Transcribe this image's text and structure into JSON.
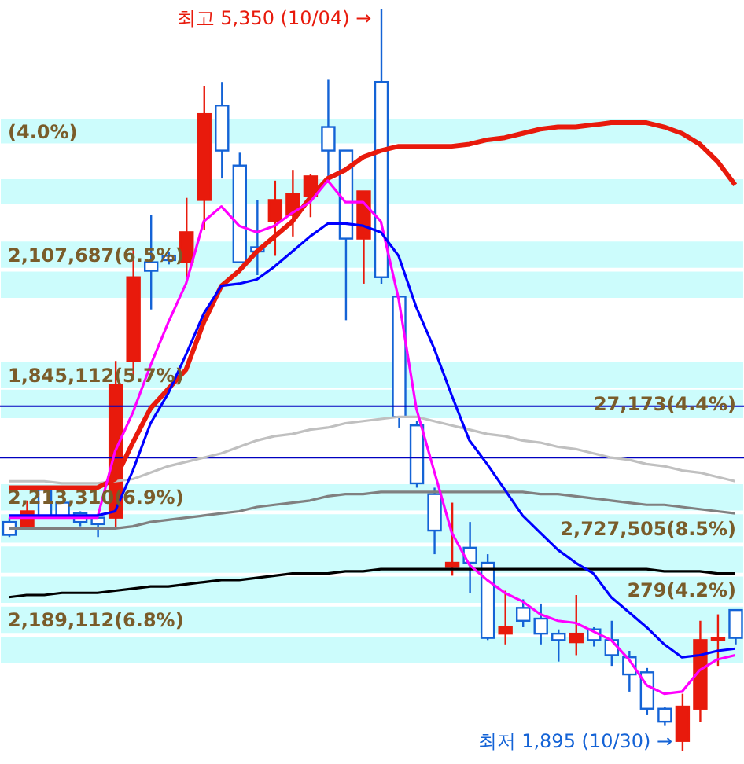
{
  "chart_data": {
    "type": "candlestick",
    "categories": [
      null,
      null,
      null,
      null,
      null,
      null,
      null,
      null,
      null,
      null,
      null,
      null,
      null,
      null,
      null,
      null,
      null,
      null,
      null,
      null,
      null,
      null,
      null,
      null,
      null,
      null,
      null,
      null,
      null,
      null,
      null,
      null,
      null,
      null,
      null,
      null,
      null,
      null,
      null,
      null,
      null,
      null
    ],
    "ohlc": [
      [
        2960,
        2980,
        2890,
        2900
      ],
      [
        2930,
        3060,
        2930,
        3010
      ],
      [
        3110,
        3110,
        2980,
        2980
      ],
      [
        3050,
        3050,
        2980,
        2980
      ],
      [
        3000,
        3010,
        2940,
        2960
      ],
      [
        2980,
        2990,
        2890,
        2950
      ],
      [
        2980,
        3710,
        2930,
        3600
      ],
      [
        3710,
        4230,
        3630,
        4100
      ],
      [
        4170,
        4390,
        3950,
        4130
      ],
      [
        4200,
        4220,
        4160,
        4180
      ],
      [
        4170,
        4470,
        4090,
        4310
      ],
      [
        4460,
        4990,
        4320,
        4860
      ],
      [
        4900,
        5010,
        4560,
        4690
      ],
      [
        4620,
        4680,
        4170,
        4170
      ],
      [
        4240,
        4460,
        4110,
        4220
      ],
      [
        4360,
        4550,
        4200,
        4460
      ],
      [
        4390,
        4600,
        4290,
        4490
      ],
      [
        4480,
        4580,
        4380,
        4570
      ],
      [
        4800,
        5020,
        4560,
        4690
      ],
      [
        4690,
        4690,
        3900,
        4280
      ],
      [
        4280,
        4500,
        4070,
        4500
      ],
      [
        5010,
        5350,
        4070,
        4100
      ],
      [
        4010,
        4010,
        3400,
        3450
      ],
      [
        3410,
        3430,
        3120,
        3140
      ],
      [
        3090,
        3120,
        2810,
        2920
      ],
      [
        2750,
        3050,
        2710,
        2770
      ],
      [
        2840,
        2960,
        2630,
        2770
      ],
      [
        2770,
        2810,
        2410,
        2420
      ],
      [
        2440,
        2640,
        2390,
        2470
      ],
      [
        2560,
        2600,
        2470,
        2500
      ],
      [
        2510,
        2580,
        2390,
        2440
      ],
      [
        2440,
        2460,
        2310,
        2410
      ],
      [
        2400,
        2620,
        2340,
        2440
      ],
      [
        2460,
        2470,
        2380,
        2410
      ],
      [
        2410,
        2500,
        2290,
        2340
      ],
      [
        2330,
        2360,
        2170,
        2250
      ],
      [
        2260,
        2280,
        2060,
        2090
      ],
      [
        2090,
        2100,
        2010,
        2030
      ],
      [
        1940,
        2160,
        1895,
        2100
      ],
      [
        2090,
        2500,
        2030,
        2410
      ],
      [
        2410,
        2530,
        2290,
        2420
      ],
      [
        2550,
        2550,
        2390,
        2420
      ]
    ],
    "colors": [
      "#1463d6",
      "#e81a0c",
      "#1463d6",
      "#1463d6",
      "#1463d6",
      "#1463d6",
      "#e81a0c",
      "#e81a0c",
      "#1463d6",
      "#1463d6",
      "#e81a0c",
      "#e81a0c",
      "#1463d6",
      "#1463d6",
      "#1463d6",
      "#e81a0c",
      "#e81a0c",
      "#e81a0c",
      "#1463d6",
      "#1463d6",
      "#e81a0c",
      "#1463d6",
      "#1463d6",
      "#1463d6",
      "#1463d6",
      "#e81a0c",
      "#1463d6",
      "#1463d6",
      "#e81a0c",
      "#1463d6",
      "#1463d6",
      "#1463d6",
      "#e81a0c",
      "#1463d6",
      "#1463d6",
      "#1463d6",
      "#1463d6",
      "#1463d6",
      "#e81a0c",
      "#e81a0c",
      "#e81a0c",
      "#1463d6"
    ],
    "series": [
      {
        "type": "line",
        "color": "#c0c0c0",
        "values": [
          3150,
          3150,
          3150,
          3140,
          3140,
          3140,
          3150,
          3160,
          3190,
          3220,
          3240,
          3260,
          3280,
          3310,
          3340,
          3360,
          3370,
          3390,
          3400,
          3420,
          3430,
          3440,
          3450,
          3450,
          3430,
          3410,
          3390,
          3370,
          3360,
          3340,
          3330,
          3310,
          3300,
          3280,
          3260,
          3250,
          3230,
          3220,
          3200,
          3190,
          3170,
          3150
        ]
      },
      {
        "type": "line",
        "color": "#808080",
        "values": [
          2930,
          2930,
          2930,
          2930,
          2930,
          2930,
          2930,
          2940,
          2960,
          2970,
          2980,
          2990,
          3000,
          3010,
          3030,
          3040,
          3050,
          3060,
          3080,
          3090,
          3090,
          3100,
          3100,
          3100,
          3100,
          3100,
          3100,
          3100,
          3100,
          3100,
          3090,
          3090,
          3080,
          3070,
          3060,
          3050,
          3040,
          3040,
          3030,
          3020,
          3010,
          3000
        ]
      },
      {
        "type": "line",
        "color": "#000000",
        "values": [
          2610,
          2620,
          2620,
          2630,
          2630,
          2630,
          2640,
          2650,
          2660,
          2660,
          2670,
          2680,
          2690,
          2690,
          2700,
          2710,
          2720,
          2720,
          2720,
          2730,
          2730,
          2740,
          2740,
          2740,
          2740,
          2740,
          2740,
          2740,
          2740,
          2740,
          2740,
          2740,
          2740,
          2740,
          2740,
          2740,
          2740,
          2730,
          2730,
          2730,
          2720,
          2720
        ]
      },
      {
        "type": "line",
        "color": "#e81a0c",
        "values": [
          3120,
          3120,
          3120,
          3120,
          3120,
          3120,
          3160,
          3330,
          3490,
          3580,
          3670,
          3890,
          4060,
          4130,
          4220,
          4290,
          4360,
          4470,
          4560,
          4600,
          4660,
          4690,
          4710,
          4710,
          4710,
          4710,
          4720,
          4740,
          4750,
          4770,
          4790,
          4800,
          4800,
          4810,
          4820,
          4820,
          4820,
          4800,
          4770,
          4720,
          4640,
          4530
        ]
      },
      {
        "type": "line",
        "color": "#ff00ff",
        "values": [
          2980,
          2980,
          2980,
          2980,
          2980,
          2980,
          3290,
          3470,
          3690,
          3890,
          4070,
          4360,
          4430,
          4340,
          4310,
          4340,
          4400,
          4450,
          4550,
          4450,
          4450,
          4360,
          4000,
          3490,
          3200,
          2910,
          2760,
          2690,
          2630,
          2590,
          2530,
          2500,
          2490,
          2450,
          2410,
          2320,
          2200,
          2160,
          2170,
          2270,
          2320,
          2340
        ]
      },
      {
        "type": "line",
        "color": "#0000ff",
        "values": [
          2990,
          2990,
          2990,
          2990,
          2990,
          2990,
          3010,
          3200,
          3420,
          3560,
          3740,
          3930,
          4060,
          4070,
          4090,
          4150,
          4220,
          4290,
          4350,
          4350,
          4340,
          4310,
          4200,
          3960,
          3770,
          3550,
          3340,
          3230,
          3110,
          2990,
          2910,
          2830,
          2770,
          2720,
          2610,
          2540,
          2470,
          2390,
          2330,
          2340,
          2360,
          2370
        ]
      }
    ],
    "ref_lines": [
      {
        "axis": "y",
        "value": 3500,
        "color": "#0000c0"
      },
      {
        "axis": "y",
        "value": 3260,
        "color": "#0000c0"
      }
    ],
    "bands": [
      {
        "axis": "y",
        "from": 4720,
        "to": 4840,
        "label": "(4.0%)",
        "color": "#ccfcfc"
      },
      {
        "axis": "y",
        "from": 4440,
        "to": 4560,
        "color": "#ccfcfc"
      },
      {
        "axis": "y",
        "from": 4140,
        "to": 4270,
        "label": "2,107,687(6.5%)",
        "color": "#ccfcfc"
      },
      {
        "axis": "y",
        "from": 4000,
        "to": 4130,
        "color": "#ccfcfc"
      },
      {
        "axis": "y",
        "from": 3580,
        "to": 3710,
        "label": "1,845,112(5.7%)",
        "color": "#ccfcfc"
      },
      {
        "axis": "y",
        "from": 3440,
        "to": 3580,
        "label": "27,173(4.4%)",
        "color": "#ccfcfc"
      },
      {
        "axis": "y",
        "from": 3010,
        "to": 3140,
        "label": "2,213,310(6.9%)",
        "color": "#ccfcfc"
      },
      {
        "axis": "y",
        "from": 2860,
        "to": 3000,
        "label": "2,727,505(8.5%)",
        "color": "#ccfcfc"
      },
      {
        "axis": "y",
        "from": 2720,
        "to": 2850,
        "color": "#ccfcfc"
      },
      {
        "axis": "y",
        "from": 2580,
        "to": 2710,
        "label": "279(4.2%)",
        "color": "#ccfcfc"
      },
      {
        "axis": "y",
        "from": 2440,
        "to": 2570,
        "label": "2,189,112(6.8%)",
        "color": "#ccfcfc"
      },
      {
        "axis": "y",
        "from": 2300,
        "to": 2430,
        "color": "#ccfcfc"
      }
    ],
    "annotations": [
      "최고 5,350 (10/04) →",
      "최저 1,895 (10/30) →"
    ]
  }
}
